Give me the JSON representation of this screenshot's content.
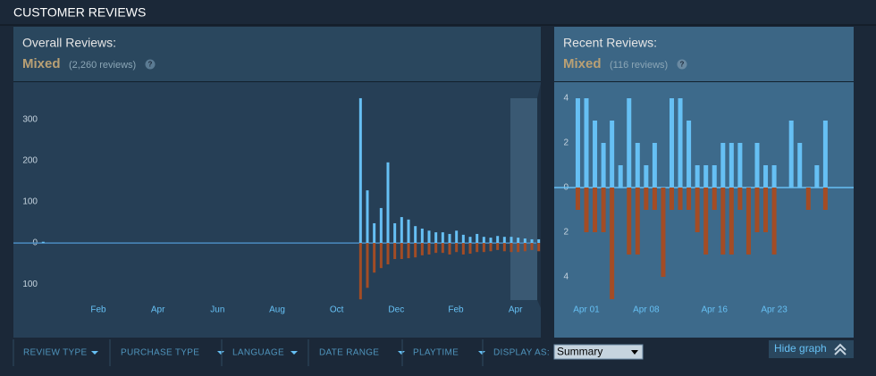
{
  "header": {
    "title": "CUSTOMER REVIEWS"
  },
  "overall": {
    "label": "Overall Reviews:",
    "summary": "Mixed",
    "count": "(2,260 reviews)",
    "help": "?"
  },
  "recent": {
    "label": "Recent Reviews:",
    "summary": "Mixed",
    "count": "(116 reviews)",
    "help": "?"
  },
  "filters": [
    "REVIEW TYPE",
    "PURCHASE TYPE",
    "LANGUAGE",
    "DATE RANGE",
    "PLAYTIME"
  ],
  "display_as": {
    "label": "DISPLAY AS:",
    "selected": "Summary"
  },
  "hide_graph": "Hide graph",
  "chart_data": [
    {
      "type": "bar",
      "x": [
        -0.85,
        9.8,
        10.03,
        10.26,
        10.49,
        10.72,
        10.95,
        11.18,
        11.41,
        11.64,
        11.87,
        12.1,
        12.33,
        12.56,
        12.79,
        13.02,
        13.25,
        13.48,
        13.71,
        13.94,
        14.17,
        14.4,
        14.63,
        14.86,
        15.09,
        15.32,
        15.55,
        15.78
      ],
      "series": [
        {
          "color": "#66c0f4",
          "values": [
            3,
            352,
            128,
            48,
            85,
            196,
            48,
            63,
            57,
            41,
            35,
            30,
            26,
            26,
            22,
            30,
            20,
            15,
            22,
            15,
            13,
            17,
            15,
            15,
            13,
            11,
            9,
            9
          ]
        },
        {
          "color": "#a34c25",
          "values": [
            0,
            -137,
            -109,
            -72,
            -61,
            -52,
            -39,
            -39,
            -37,
            -35,
            -30,
            -28,
            -24,
            -24,
            -28,
            -22,
            -28,
            -26,
            -22,
            -22,
            -20,
            -17,
            -20,
            -22,
            -22,
            -20,
            -17,
            -20
          ]
        }
      ],
      "xlim": [
        -1.85,
        15.85
      ],
      "xticks": [
        {
          "value": 1,
          "label": "Feb"
        },
        {
          "value": 3,
          "label": "Apr"
        },
        {
          "value": 5,
          "label": "Jun"
        },
        {
          "value": 7,
          "label": "Aug"
        },
        {
          "value": 9,
          "label": "Oct"
        },
        {
          "value": 11,
          "label": "Dec"
        },
        {
          "value": 13,
          "label": "Feb"
        },
        {
          "value": 15,
          "label": "Apr"
        }
      ],
      "ylim": [
        -230,
        391
      ],
      "yticks": [
        300,
        200,
        100,
        0,
        {
          "value": -100,
          "label": "100"
        }
      ]
    },
    {
      "type": "bar",
      "x": [
        0,
        1,
        2,
        3,
        4,
        5,
        6,
        7,
        8,
        9,
        10,
        11,
        12,
        13,
        14,
        15,
        16,
        17,
        18,
        19,
        20,
        21,
        22,
        23,
        24,
        25,
        26,
        27,
        28,
        29
      ],
      "series": [
        {
          "color": "#66c0f4",
          "values": [
            4,
            4,
            3,
            2,
            3,
            1,
            4,
            2,
            1,
            2,
            0,
            4,
            4,
            3,
            1,
            1,
            1,
            2,
            2,
            2,
            0,
            2,
            1,
            1,
            0,
            3,
            2,
            0,
            1,
            3
          ]
        },
        {
          "color": "#a34c25",
          "values": [
            -1,
            -2,
            -2,
            -2,
            -5,
            0,
            -3,
            -3,
            -1,
            -1,
            -4,
            -1,
            -1,
            -1,
            -2,
            -3,
            -1,
            -3,
            -3,
            -1,
            -3,
            -2,
            -2,
            -3,
            0,
            0,
            0,
            -1,
            0,
            -1
          ]
        }
      ],
      "xlim": [
        -2.77,
        32.31
      ],
      "xticks": [
        {
          "value": 1,
          "label": "Apr 01"
        },
        {
          "value": 8,
          "label": "Apr 08"
        },
        {
          "value": 16,
          "label": "Apr 16"
        },
        {
          "value": 23,
          "label": "Apr 23"
        }
      ],
      "ylim": [
        -6.72,
        4.72
      ],
      "yticks": [
        4,
        2,
        0,
        {
          "value": -2,
          "label": "2"
        },
        {
          "value": -4,
          "label": "4"
        }
      ]
    }
  ]
}
